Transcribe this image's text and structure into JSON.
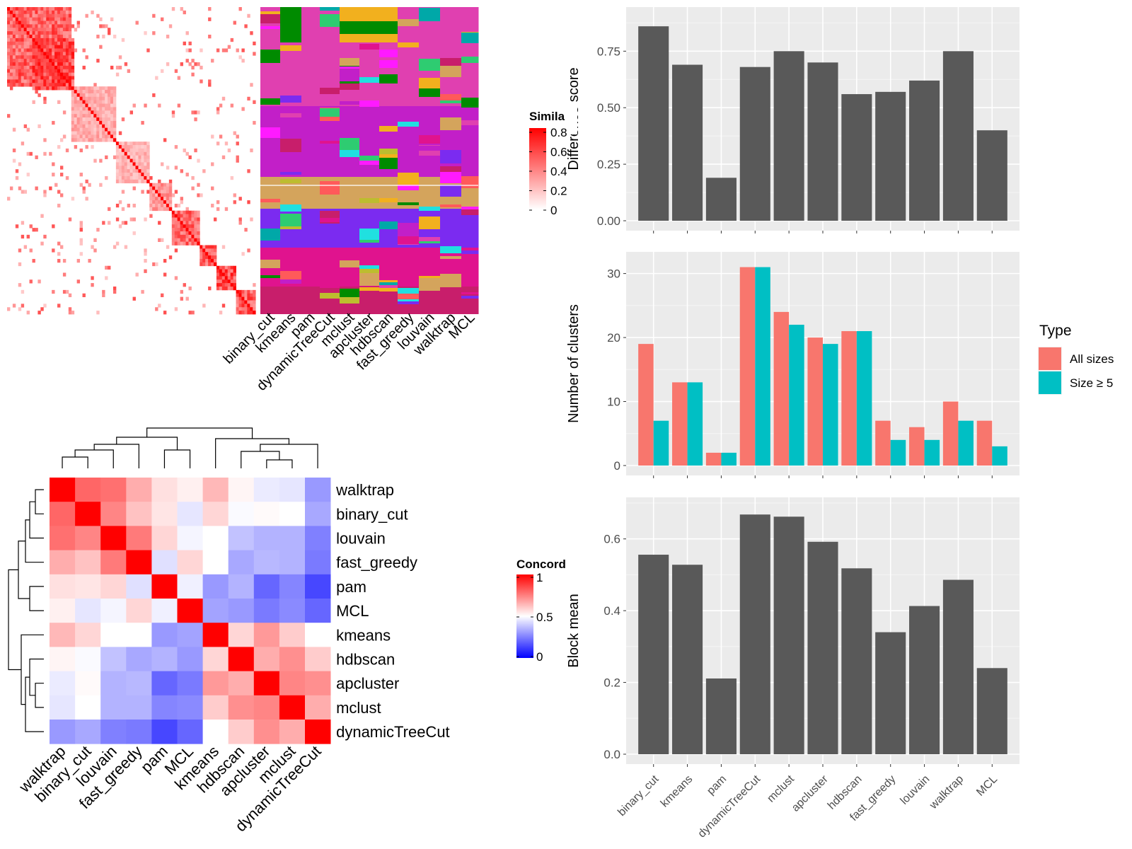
{
  "colors": {
    "panel_bg": "#EBEBEB",
    "grid_major": "#FFFFFF",
    "bar_dark": "#595959",
    "type_all_sizes": "#F8766D",
    "type_size_ge5": "#00BFC4",
    "similarity_high": "#FF0000",
    "concordance_high": "#FF0000",
    "concordance_mid": "#FFFFFF",
    "concordance_low": "#0000FF"
  },
  "similarity_heatmap": {
    "legend_title": "Simila",
    "legend_ticks": [
      "0.8",
      "0.6",
      "0.4",
      "0.2",
      "0"
    ],
    "method_columns": [
      "binary_cut",
      "kmeans",
      "pam",
      "dynamicTreeCut",
      "mclust",
      "apcluster",
      "hdbscan",
      "fast_greedy",
      "louvain",
      "walktrap",
      "MCL"
    ]
  },
  "concordance_heatmap": {
    "legend_title": "Concord",
    "legend_ticks": [
      "1",
      "0.5",
      "0"
    ],
    "row_labels": [
      "walktrap",
      "binary_cut",
      "louvain",
      "fast_greedy",
      "pam",
      "MCL",
      "kmeans",
      "hdbscan",
      "apcluster",
      "mclust",
      "dynamicTreeCut"
    ],
    "col_labels": [
      "walktrap",
      "binary_cut",
      "louvain",
      "fast_greedy",
      "pam",
      "MCL",
      "kmeans",
      "hdbscan",
      "apcluster",
      "mclust",
      "dynamicTreeCut"
    ],
    "matrix": [
      [
        1.0,
        0.8,
        0.78,
        0.66,
        0.56,
        0.53,
        0.64,
        0.52,
        0.46,
        0.45,
        0.3
      ],
      [
        0.8,
        1.0,
        0.74,
        0.62,
        0.55,
        0.45,
        0.58,
        0.49,
        0.51,
        0.5,
        0.33
      ],
      [
        0.78,
        0.74,
        1.0,
        0.76,
        0.58,
        0.48,
        0.5,
        0.38,
        0.35,
        0.35,
        0.25
      ],
      [
        0.66,
        0.62,
        0.76,
        1.0,
        0.44,
        0.58,
        0.5,
        0.33,
        0.36,
        0.35,
        0.24
      ],
      [
        0.56,
        0.55,
        0.58,
        0.44,
        1.0,
        0.47,
        0.3,
        0.35,
        0.2,
        0.26,
        0.14
      ],
      [
        0.53,
        0.45,
        0.48,
        0.58,
        0.47,
        1.0,
        0.32,
        0.3,
        0.24,
        0.27,
        0.2
      ],
      [
        0.64,
        0.58,
        0.5,
        0.5,
        0.3,
        0.32,
        1.0,
        0.58,
        0.7,
        0.6,
        0.5
      ],
      [
        0.52,
        0.49,
        0.38,
        0.33,
        0.35,
        0.3,
        0.58,
        1.0,
        0.66,
        0.72,
        0.6
      ],
      [
        0.46,
        0.51,
        0.35,
        0.36,
        0.2,
        0.24,
        0.7,
        0.66,
        1.0,
        0.74,
        0.72
      ],
      [
        0.45,
        0.5,
        0.35,
        0.35,
        0.26,
        0.27,
        0.6,
        0.72,
        0.74,
        1.0,
        0.66
      ],
      [
        0.3,
        0.33,
        0.25,
        0.24,
        0.14,
        0.2,
        0.5,
        0.6,
        0.72,
        0.66,
        1.0
      ]
    ]
  },
  "chart_data": [
    {
      "type": "bar",
      "ylabel": "Difference score",
      "categories": [
        "binary_cut",
        "kmeans",
        "pam",
        "dynamicTreeCut",
        "mclust",
        "apcluster",
        "hdbscan",
        "fast_greedy",
        "louvain",
        "walktrap",
        "MCL"
      ],
      "values": [
        0.86,
        0.69,
        0.19,
        0.68,
        0.75,
        0.7,
        0.56,
        0.57,
        0.62,
        0.75,
        0.4
      ],
      "ylim": [
        0,
        0.92
      ],
      "yticks": [
        0,
        0.25,
        0.5,
        0.75
      ],
      "ytick_labels": [
        "0.00",
        "0.25",
        "0.50",
        "0.75"
      ],
      "grid": true
    },
    {
      "type": "bar",
      "ylabel": "Number of clusters",
      "categories": [
        "binary_cut",
        "kmeans",
        "pam",
        "dynamicTreeCut",
        "mclust",
        "apcluster",
        "hdbscan",
        "fast_greedy",
        "louvain",
        "walktrap",
        "MCL"
      ],
      "series": [
        {
          "name": "All sizes",
          "values": [
            19,
            13,
            2,
            31,
            24,
            20,
            21,
            7,
            6,
            10,
            7
          ]
        },
        {
          "name": "Size ≥ 5",
          "values": [
            7,
            13,
            2,
            31,
            22,
            19,
            21,
            4,
            4,
            7,
            3
          ]
        }
      ],
      "legend_title": "Type",
      "legend_position": "right",
      "ylim": [
        0,
        32.5
      ],
      "yticks": [
        0,
        10,
        20,
        30
      ],
      "ytick_labels": [
        "0",
        "10",
        "20",
        "30"
      ],
      "grid": true
    },
    {
      "type": "bar",
      "ylabel": "Block mean",
      "categories": [
        "binary_cut",
        "kmeans",
        "pam",
        "dynamicTreeCut",
        "mclust",
        "apcluster",
        "hdbscan",
        "fast_greedy",
        "louvain",
        "walktrap",
        "MCL"
      ],
      "values": [
        0.556,
        0.528,
        0.211,
        0.668,
        0.662,
        0.592,
        0.518,
        0.34,
        0.413,
        0.486,
        0.24
      ],
      "ylim": [
        0,
        0.7
      ],
      "yticks": [
        0,
        0.2,
        0.4,
        0.6
      ],
      "ytick_labels": [
        "0.0",
        "0.2",
        "0.4",
        "0.6"
      ],
      "grid": true
    }
  ]
}
